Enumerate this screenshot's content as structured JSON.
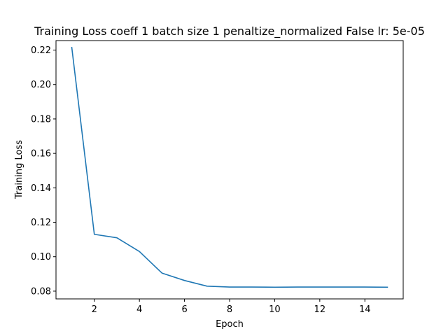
{
  "chart_data": {
    "type": "line",
    "title": "Training Loss coeff 1 batch size 1 penaltize_normalized False lr: 5e-05",
    "xlabel": "Epoch",
    "ylabel": "Training Loss",
    "xlim": [
      0.3,
      15.7
    ],
    "ylim": [
      0.0755,
      0.2255
    ],
    "x_ticks": [
      2,
      4,
      6,
      8,
      10,
      12,
      14
    ],
    "y_ticks": [
      0.08,
      0.1,
      0.12,
      0.14,
      0.16,
      0.18,
      0.2,
      0.22
    ],
    "y_tick_labels": [
      "0.08",
      "0.10",
      "0.12",
      "0.14",
      "0.16",
      "0.18",
      "0.20",
      "0.22"
    ],
    "grid": false,
    "series": [
      {
        "color": "#1f77b4",
        "x": [
          1,
          2,
          3,
          4,
          5,
          6,
          7,
          8,
          9,
          10,
          11,
          12,
          13,
          14,
          15
        ],
        "y": [
          0.2215,
          0.113,
          0.111,
          0.103,
          0.0905,
          0.0862,
          0.0829,
          0.0824,
          0.0824,
          0.0823,
          0.0824,
          0.0824,
          0.0824,
          0.0824,
          0.0823
        ]
      }
    ]
  }
}
